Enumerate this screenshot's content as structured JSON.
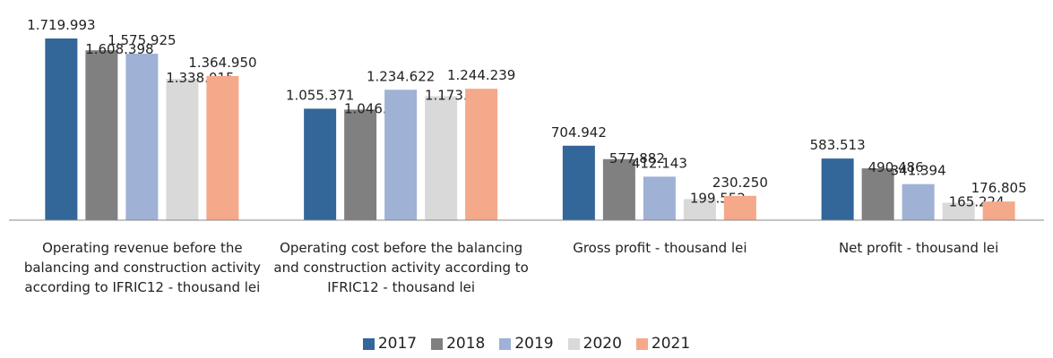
{
  "chart_data": {
    "type": "bar",
    "categories": [
      "Operating revenue before the balancing and construction activity according to IFRIC12 - thousand lei",
      "Operating cost before the balancing and construction activity according to IFRIC12 - thousand lei",
      "Gross profit - thousand lei",
      "Net profit - thousand lei"
    ],
    "series": [
      {
        "name": "2017",
        "color": "#336699",
        "values": [
          1719993,
          1055371,
          704942,
          583513
        ],
        "value_labels": [
          "1.719.993",
          "1.055.371",
          "704.942",
          "583.513"
        ]
      },
      {
        "name": "2018",
        "color": "#808080",
        "values": [
          1608398,
          1046952,
          577882,
          490486
        ],
        "value_labels": [
          "1.608.398",
          "1.046.952",
          "577.882",
          "490.486"
        ]
      },
      {
        "name": "2019",
        "color": "#9fb1d4",
        "values": [
          1575925,
          1234622,
          412143,
          341394
        ],
        "value_labels": [
          "1.575.925",
          "1.234.622",
          "412.143",
          "341.394"
        ]
      },
      {
        "name": "2020",
        "color": "#d9d9d9",
        "values": [
          1338015,
          1173521,
          199552,
          165224
        ],
        "value_labels": [
          "1.338.015",
          "1.173.521",
          "199.552",
          "165.224"
        ]
      },
      {
        "name": "2021",
        "color": "#f4a98a",
        "values": [
          1364950,
          1244239,
          230250,
          176805
        ],
        "value_labels": [
          "1.364.950",
          "1.244.239",
          "230.250",
          "176.805"
        ]
      }
    ]
  }
}
